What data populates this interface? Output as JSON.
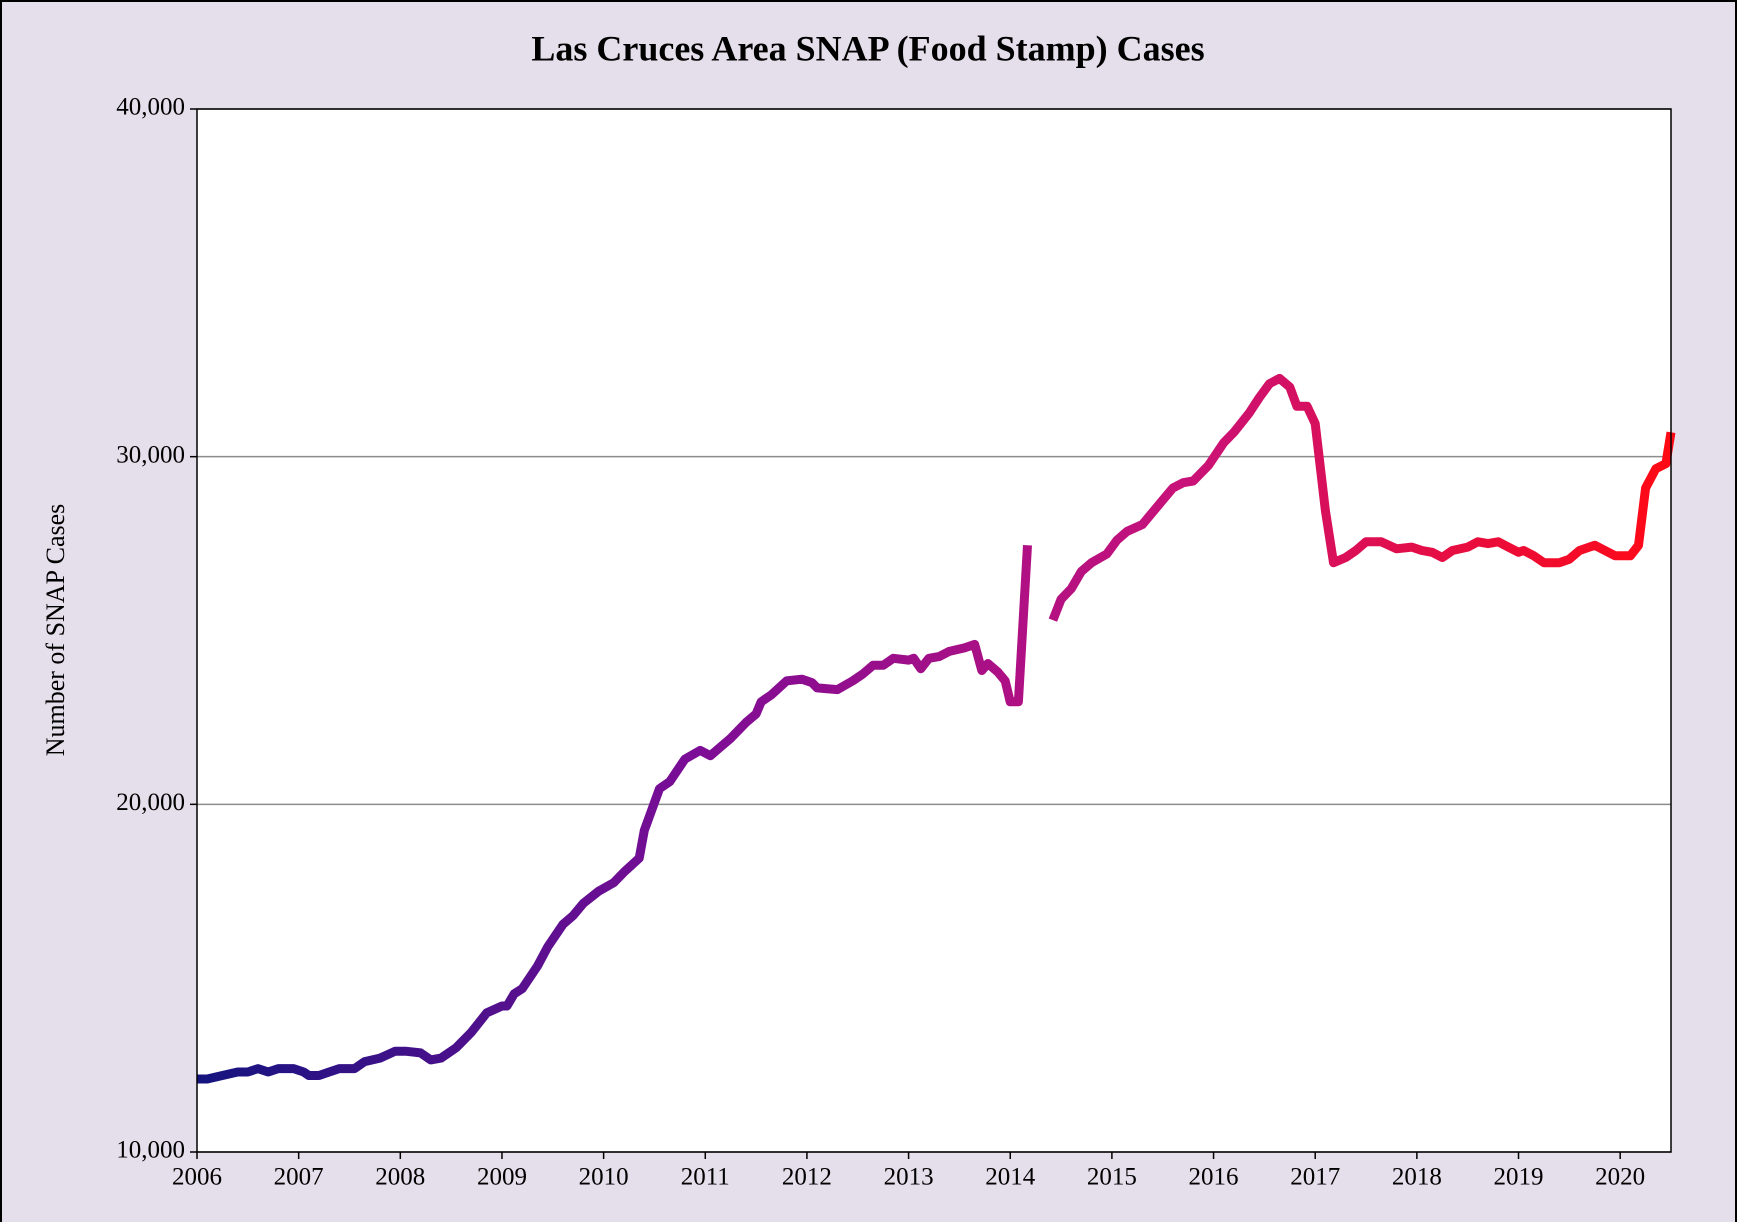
{
  "chart_data": {
    "type": "line",
    "title": "Las Cruces Area SNAP (Food Stamp) Cases",
    "ylabel": "Number of SNAP Cases",
    "x": [
      2006.0,
      2006.1,
      2006.25,
      2006.4,
      2006.5,
      2006.6,
      2006.7,
      2006.8,
      2006.95,
      2007.05,
      2007.1,
      2007.2,
      2007.3,
      2007.4,
      2007.55,
      2007.65,
      2007.8,
      2007.95,
      2008.05,
      2008.2,
      2008.3,
      2008.4,
      2008.55,
      2008.7,
      2008.85,
      2009.0,
      2009.05,
      2009.12,
      2009.2,
      2009.35,
      2009.45,
      2009.6,
      2009.7,
      2009.8,
      2009.95,
      2010.1,
      2010.2,
      2010.35,
      2010.4,
      2010.55,
      2010.65,
      2010.8,
      2010.95,
      2011.05,
      2011.15,
      2011.25,
      2011.4,
      2011.5,
      2011.55,
      2011.65,
      2011.8,
      2011.95,
      2012.05,
      2012.1,
      2012.3,
      2012.45,
      2012.55,
      2012.65,
      2012.75,
      2012.85,
      2013.0,
      2013.05,
      2013.12,
      2013.2,
      2013.3,
      2013.4,
      2013.55,
      2013.65,
      2013.72,
      2013.78,
      2013.88,
      2013.95,
      2014.0,
      2014.08,
      2014.17,
      2014.3,
      2014.42,
      2014.5,
      2014.6,
      2014.7,
      2014.8,
      2014.95,
      2015.05,
      2015.15,
      2015.3,
      2015.4,
      2015.5,
      2015.6,
      2015.7,
      2015.8,
      2015.95,
      2016.1,
      2016.2,
      2016.35,
      2016.45,
      2016.55,
      2016.65,
      2016.75,
      2016.82,
      2016.92,
      2017.0,
      2017.1,
      2017.18,
      2017.3,
      2017.4,
      2017.5,
      2017.65,
      2017.8,
      2017.95,
      2018.05,
      2018.15,
      2018.25,
      2018.35,
      2018.5,
      2018.6,
      2018.7,
      2018.8,
      2018.9,
      2019.0,
      2019.05,
      2019.15,
      2019.25,
      2019.4,
      2019.5,
      2019.6,
      2019.75,
      2019.85,
      2019.95,
      2020.1,
      2020.18,
      2020.25,
      2020.35,
      2020.45,
      2020.5
    ],
    "series": [
      {
        "gradient_colors": [
          "#14147f",
          "#7b0d96",
          "#c8127a",
          "#ff0a14"
        ],
        "values": [
          12100,
          12100,
          12200,
          12300,
          12300,
          12400,
          12300,
          12400,
          12400,
          12300,
          12200,
          12200,
          12300,
          12400,
          12400,
          12600,
          12700,
          12900,
          12900,
          12850,
          12650,
          12700,
          13000,
          13450,
          14000,
          14200,
          14200,
          14550,
          14700,
          15350,
          15900,
          16550,
          16800,
          17150,
          17500,
          17750,
          18050,
          18450,
          19250,
          20450,
          20650,
          21300,
          21550,
          21400,
          21650,
          21900,
          22350,
          22600,
          22950,
          23150,
          23550,
          23600,
          23500,
          23350,
          23300,
          23550,
          23750,
          24000,
          24000,
          24200,
          24150,
          24200,
          23900,
          24200,
          24250,
          24400,
          24500,
          24600,
          23850,
          24050,
          23800,
          23550,
          22950,
          22950,
          27450,
          null,
          25300,
          25900,
          26200,
          26700,
          26950,
          27200,
          27600,
          27850,
          28050,
          28400,
          28750,
          29100,
          29250,
          29300,
          29750,
          30400,
          30700,
          31250,
          31700,
          32100,
          32250,
          32000,
          31450,
          31450,
          30950,
          28450,
          26950,
          27100,
          27300,
          27550,
          27550,
          27350,
          27400,
          27300,
          27250,
          27100,
          27300,
          27400,
          27550,
          27500,
          27550,
          27400,
          27250,
          27300,
          27150,
          26950,
          26950,
          27050,
          27300,
          27450,
          27300,
          27150,
          27150,
          27450,
          29100,
          29650,
          29800,
          30700
        ]
      }
    ],
    "xlim": [
      2006,
      2020.5
    ],
    "xticks": [
      2006,
      2007,
      2008,
      2009,
      2010,
      2011,
      2012,
      2013,
      2014,
      2015,
      2016,
      2017,
      2018,
      2019,
      2020
    ],
    "ylim": [
      10000,
      40000
    ],
    "yticks": [
      {
        "value": 10000,
        "label": "10,000"
      },
      {
        "value": 20000,
        "label": "20,000"
      },
      {
        "value": 30000,
        "label": "30,000"
      },
      {
        "value": 40000,
        "label": "40,000"
      }
    ],
    "grid": true
  }
}
